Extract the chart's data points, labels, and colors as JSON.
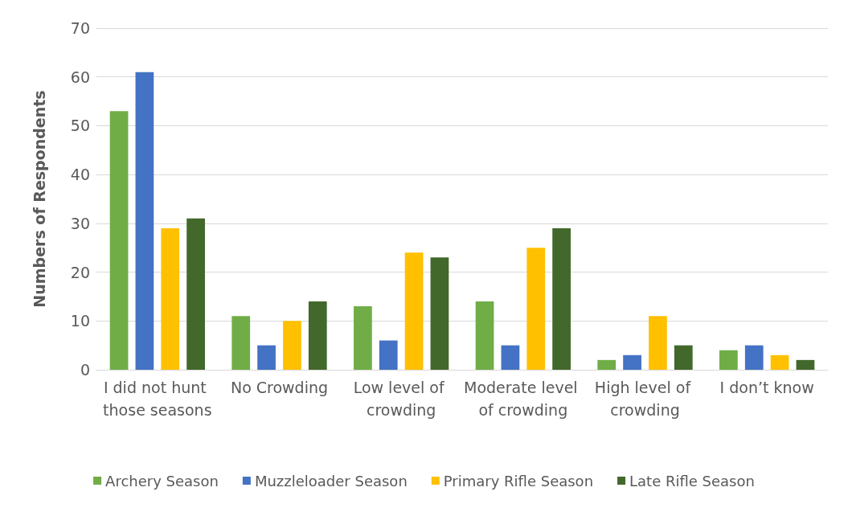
{
  "chart_data": {
    "type": "bar",
    "ylabel": "Numbers of Respondents",
    "categories": [
      "I did not hunt those seasons",
      "No Crowding",
      "Low level of crowding",
      "Moderate level of crowding",
      "High level of crowding",
      "I don’t know"
    ],
    "series": [
      {
        "name": "Archery Season",
        "color": "#70ad47",
        "values": [
          53,
          11,
          13,
          14,
          2,
          4
        ]
      },
      {
        "name": "Muzzleloader Season",
        "color": "#4472c4",
        "values": [
          61,
          5,
          6,
          5,
          3,
          5
        ]
      },
      {
        "name": "Primary Rifle Season",
        "color": "#ffc000",
        "values": [
          29,
          10,
          24,
          25,
          11,
          3
        ]
      },
      {
        "name": "Late Rifle Season",
        "color": "#43682b",
        "values": [
          31,
          14,
          23,
          29,
          5,
          2
        ]
      }
    ],
    "ylim": [
      0,
      70
    ],
    "yticks": [
      0,
      10,
      20,
      30,
      40,
      50,
      60,
      70
    ],
    "grid": "y",
    "legend": "bottom"
  }
}
